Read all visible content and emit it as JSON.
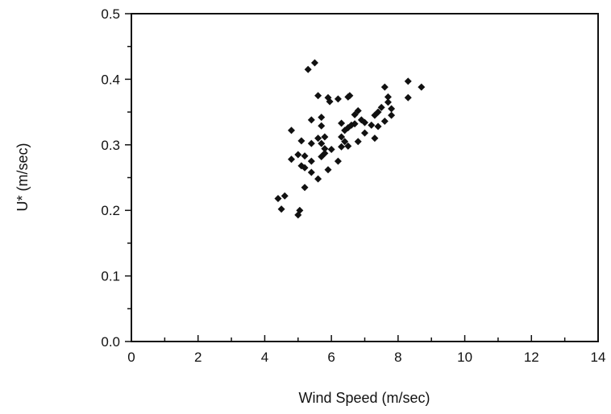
{
  "chart_data": {
    "type": "scatter",
    "title": "",
    "xlabel": "Wind Speed (m/sec)",
    "ylabel": "U* (m/sec)",
    "xlim": [
      0,
      14
    ],
    "ylim": [
      0.0,
      0.5
    ],
    "x_ticks": [
      "0",
      "2",
      "4",
      "6",
      "8",
      "10",
      "12",
      "14"
    ],
    "y_ticks": [
      "0.0",
      "0.1",
      "0.2",
      "0.3",
      "0.4",
      "0.5"
    ],
    "grid": false,
    "legend": "none",
    "marker_color": "#111111",
    "points": [
      {
        "x": 4.4,
        "y": 0.218
      },
      {
        "x": 4.6,
        "y": 0.222
      },
      {
        "x": 4.5,
        "y": 0.202
      },
      {
        "x": 5.0,
        "y": 0.193
      },
      {
        "x": 5.05,
        "y": 0.2
      },
      {
        "x": 5.2,
        "y": 0.235
      },
      {
        "x": 4.8,
        "y": 0.322
      },
      {
        "x": 4.8,
        "y": 0.278
      },
      {
        "x": 5.0,
        "y": 0.285
      },
      {
        "x": 5.1,
        "y": 0.306
      },
      {
        "x": 5.1,
        "y": 0.268
      },
      {
        "x": 5.2,
        "y": 0.283
      },
      {
        "x": 5.2,
        "y": 0.265
      },
      {
        "x": 5.3,
        "y": 0.415
      },
      {
        "x": 5.5,
        "y": 0.425
      },
      {
        "x": 5.4,
        "y": 0.338
      },
      {
        "x": 5.4,
        "y": 0.302
      },
      {
        "x": 5.4,
        "y": 0.275
      },
      {
        "x": 5.4,
        "y": 0.258
      },
      {
        "x": 5.6,
        "y": 0.375
      },
      {
        "x": 5.6,
        "y": 0.248
      },
      {
        "x": 5.7,
        "y": 0.342
      },
      {
        "x": 5.7,
        "y": 0.329
      },
      {
        "x": 5.6,
        "y": 0.31
      },
      {
        "x": 5.8,
        "y": 0.312
      },
      {
        "x": 5.7,
        "y": 0.302
      },
      {
        "x": 5.8,
        "y": 0.294
      },
      {
        "x": 5.7,
        "y": 0.282
      },
      {
        "x": 5.8,
        "y": 0.287
      },
      {
        "x": 5.9,
        "y": 0.262
      },
      {
        "x": 5.9,
        "y": 0.372
      },
      {
        "x": 5.95,
        "y": 0.366
      },
      {
        "x": 6.0,
        "y": 0.293
      },
      {
        "x": 6.2,
        "y": 0.37
      },
      {
        "x": 6.2,
        "y": 0.275
      },
      {
        "x": 6.3,
        "y": 0.333
      },
      {
        "x": 6.3,
        "y": 0.312
      },
      {
        "x": 6.3,
        "y": 0.297
      },
      {
        "x": 6.4,
        "y": 0.322
      },
      {
        "x": 6.4,
        "y": 0.305
      },
      {
        "x": 6.5,
        "y": 0.373
      },
      {
        "x": 6.55,
        "y": 0.375
      },
      {
        "x": 6.5,
        "y": 0.326
      },
      {
        "x": 6.6,
        "y": 0.33
      },
      {
        "x": 6.5,
        "y": 0.298
      },
      {
        "x": 6.7,
        "y": 0.346
      },
      {
        "x": 6.8,
        "y": 0.352
      },
      {
        "x": 6.7,
        "y": 0.332
      },
      {
        "x": 6.8,
        "y": 0.305
      },
      {
        "x": 6.9,
        "y": 0.338
      },
      {
        "x": 7.0,
        "y": 0.334
      },
      {
        "x": 7.0,
        "y": 0.318
      },
      {
        "x": 7.2,
        "y": 0.33
      },
      {
        "x": 7.3,
        "y": 0.345
      },
      {
        "x": 7.4,
        "y": 0.35
      },
      {
        "x": 7.5,
        "y": 0.357
      },
      {
        "x": 7.4,
        "y": 0.328
      },
      {
        "x": 7.3,
        "y": 0.31
      },
      {
        "x": 7.6,
        "y": 0.388
      },
      {
        "x": 7.7,
        "y": 0.373
      },
      {
        "x": 7.7,
        "y": 0.365
      },
      {
        "x": 7.6,
        "y": 0.336
      },
      {
        "x": 7.8,
        "y": 0.355
      },
      {
        "x": 7.8,
        "y": 0.345
      },
      {
        "x": 8.3,
        "y": 0.397
      },
      {
        "x": 8.3,
        "y": 0.372
      },
      {
        "x": 8.7,
        "y": 0.388
      }
    ]
  }
}
